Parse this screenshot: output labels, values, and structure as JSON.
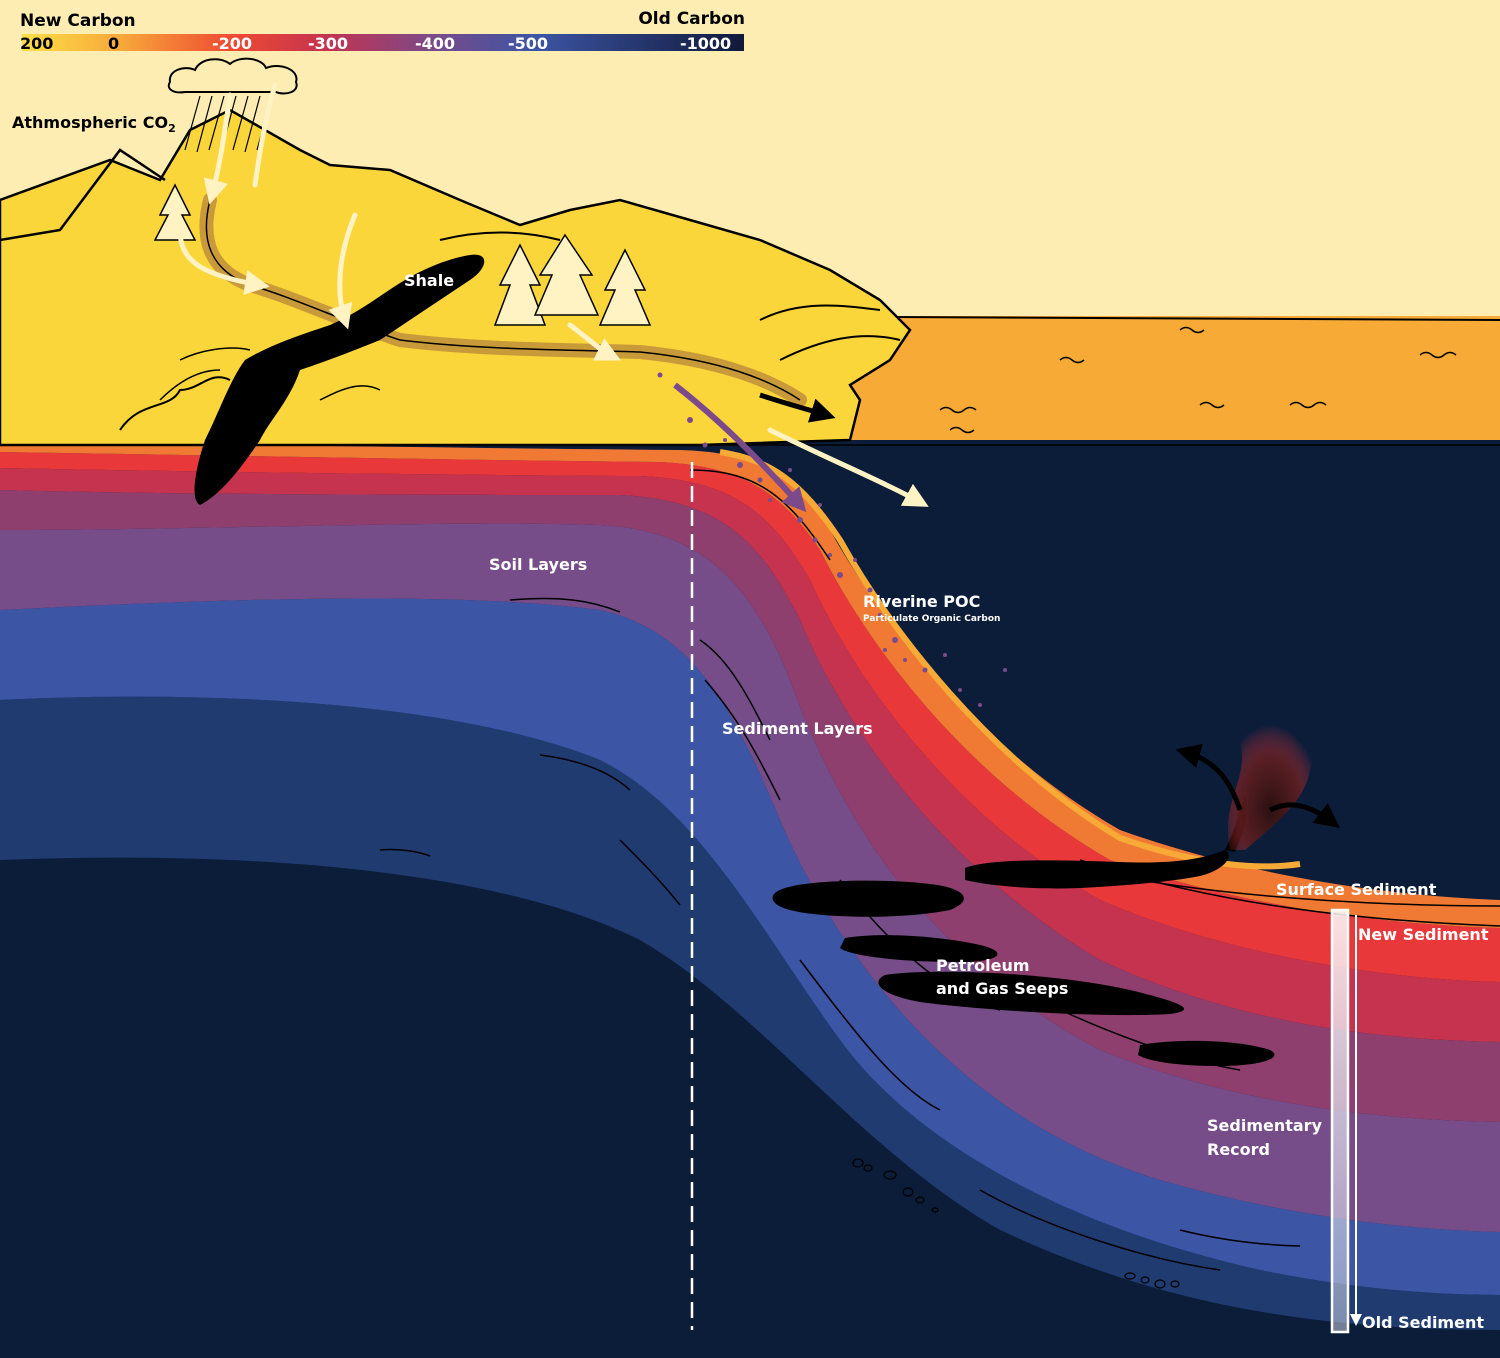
{
  "legend": {
    "new_label": "New Carbon",
    "old_label": "Old Carbon",
    "ticks": [
      "200",
      "0",
      "-200",
      "-300",
      "-400",
      "-500",
      "-1000"
    ],
    "colors": [
      "#fde047",
      "#f7a63a",
      "#ef4a32",
      "#c5334f",
      "#7a4a8a",
      "#3c55a4",
      "#10193a"
    ]
  },
  "labels": {
    "atmospheric": "Athmospheric CO",
    "atmospheric_sub": "2",
    "shale": "Shale",
    "soil_layers": "Soil Layers",
    "riverine_poc": "Riverine POC",
    "riverine_poc_sub": "Particulate Organic Carbon",
    "sediment_layers": "Sediment Layers",
    "surface_sediment": "Surface Sediment",
    "new_sediment": "New Sediment",
    "petroleum_1": "Petroleum",
    "petroleum_2": "and Gas Seeps",
    "sedimentary_1": "Sedimentary",
    "sedimentary_2": "Record",
    "old_sediment": "Old Sediment"
  },
  "colors": {
    "sky": "#fdedb3",
    "land": "#fbd63a",
    "ocean_top": "#f7aa35",
    "ocean_mid": "#f07a33",
    "ocean_deep": "#ee3a30",
    "layer_orange": "#f07a33",
    "layer_red": "#e8383a",
    "layer_crimson": "#c5334f",
    "layer_plum": "#8e3f6e",
    "layer_purple": "#764d89",
    "layer_blue": "#3c55a4",
    "layer_navy": "#1f3b70",
    "layer_dark": "#0c1d3a",
    "ink": "#000000",
    "river": "#fff3c4"
  }
}
